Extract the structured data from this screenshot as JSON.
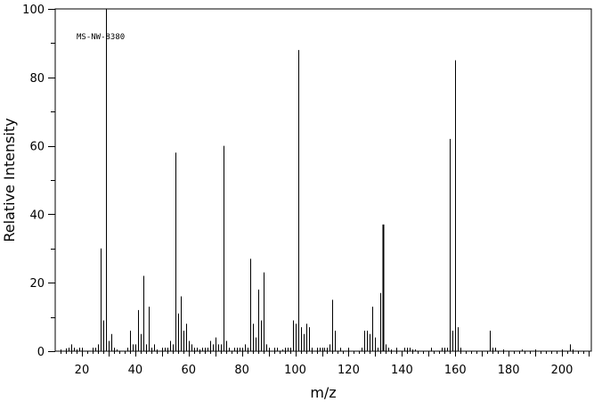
{
  "chart_data": {
    "type": "bar",
    "title": "",
    "annotation": "MS-NW-8380",
    "xlabel": "m/z",
    "ylabel": "Relative Intensity",
    "xlim": [
      10,
      211
    ],
    "ylim": [
      0,
      100
    ],
    "x_ticks": [
      20,
      40,
      60,
      80,
      100,
      120,
      140,
      160,
      180,
      200
    ],
    "y_ticks": [
      0,
      20,
      40,
      60,
      80,
      100
    ],
    "grid": false,
    "series": [
      {
        "x": [
          12,
          14,
          15,
          16,
          17,
          18,
          19,
          20,
          24,
          25,
          26,
          27,
          28,
          29,
          30,
          31,
          32,
          33,
          37,
          38,
          39,
          40,
          41,
          42,
          43,
          44,
          45,
          46,
          47,
          48,
          50,
          51,
          52,
          53,
          54,
          55,
          56,
          57,
          58,
          59,
          60,
          61,
          62,
          63,
          64,
          65,
          66,
          67,
          68,
          69,
          70,
          71,
          72,
          73,
          74,
          75,
          77,
          78,
          79,
          80,
          81,
          82,
          83,
          84,
          85,
          86,
          87,
          88,
          89,
          90,
          92,
          93,
          95,
          96,
          97,
          98,
          99,
          100,
          101,
          102,
          103,
          104,
          105,
          106,
          108,
          109,
          110,
          111,
          112,
          113,
          114,
          115,
          117,
          120,
          125,
          126,
          127,
          128,
          129,
          130,
          131,
          132,
          133,
          134,
          135,
          136,
          138,
          141,
          142,
          143,
          144,
          145,
          151,
          155,
          156,
          157,
          158,
          159,
          160,
          161,
          162,
          173,
          174,
          175,
          178,
          185,
          190,
          200,
          203,
          204
        ],
        "y": [
          0.5,
          0.8,
          1,
          2,
          1,
          0.5,
          1,
          1,
          1,
          1,
          2,
          30,
          9,
          100,
          3,
          5,
          1,
          0.5,
          1,
          6,
          2,
          2,
          12,
          5,
          22,
          2,
          13,
          1,
          2,
          0.5,
          1,
          1,
          1,
          3,
          2,
          58,
          11,
          16,
          6,
          8,
          3,
          2,
          1,
          1,
          0.5,
          1,
          1,
          1,
          3,
          2,
          4,
          2,
          2,
          60,
          3,
          1,
          1,
          1,
          1,
          1,
          2,
          1,
          27,
          8,
          4,
          18,
          9,
          23,
          2,
          1,
          1,
          1,
          0.5,
          1,
          1,
          1,
          9,
          8,
          88,
          7,
          5,
          8,
          7,
          1,
          1,
          1,
          1,
          1,
          1,
          2,
          15,
          6,
          1,
          1,
          1,
          6,
          6,
          5,
          13,
          4,
          1,
          17,
          37,
          2,
          1,
          0.5,
          1,
          1,
          1,
          1,
          0.5,
          0.5,
          1,
          1,
          1,
          1,
          62,
          6,
          85,
          7,
          1,
          6,
          1,
          1,
          0.5,
          0.5,
          0.5,
          0.5,
          2,
          0.5
        ]
      }
    ]
  }
}
